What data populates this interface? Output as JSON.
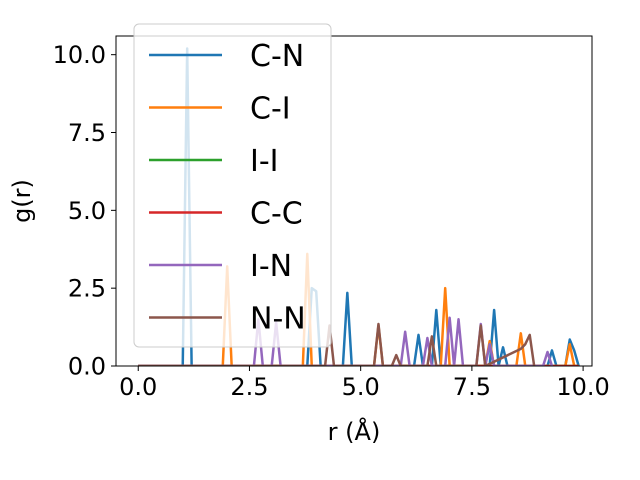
{
  "chart_data": {
    "type": "line",
    "title": "",
    "xlabel": "r (Å)",
    "ylabel": "g(r)",
    "xlim": [
      -0.5,
      10.2
    ],
    "ylim": [
      0.0,
      10.6
    ],
    "x_ticks": [
      0.0,
      2.5,
      5.0,
      7.5,
      10.0
    ],
    "x_tick_labels": [
      "0.0",
      "2.5",
      "5.0",
      "7.5",
      "10.0"
    ],
    "y_ticks": [
      0.0,
      2.5,
      5.0,
      7.5,
      10.0
    ],
    "y_tick_labels": [
      "0.0",
      "2.5",
      "5.0",
      "7.5",
      "10.0"
    ],
    "grid": false,
    "legend_position": "upper-left",
    "series": [
      {
        "name": "C-N",
        "color": "#1f77b4",
        "x": [
          0.0,
          1.0,
          1.1,
          1.2,
          3.8,
          3.9,
          4.0,
          4.1,
          4.6,
          4.7,
          4.8,
          6.2,
          6.3,
          6.4,
          6.6,
          6.7,
          6.8,
          7.9,
          8.0,
          8.1,
          8.2,
          8.3,
          8.4,
          9.2,
          9.3,
          9.4,
          9.6,
          9.7,
          9.8,
          9.9
        ],
        "y": [
          0.0,
          0.0,
          10.2,
          0.0,
          0.0,
          2.5,
          2.4,
          0.0,
          0.0,
          2.35,
          0.0,
          0.0,
          1.0,
          0.0,
          0.0,
          1.8,
          0.0,
          0.0,
          1.8,
          0.0,
          0.6,
          0.0,
          0.0,
          0.0,
          0.5,
          0.0,
          0.0,
          0.85,
          0.5,
          0.0
        ]
      },
      {
        "name": "C-I",
        "color": "#ff7f0e",
        "x": [
          0.0,
          1.9,
          2.0,
          2.1,
          3.7,
          3.8,
          3.9,
          5.3,
          5.4,
          5.5,
          6.8,
          6.9,
          7.0,
          7.8,
          7.9,
          8.0,
          8.5,
          8.6,
          8.7,
          9.6,
          9.7,
          9.8,
          9.9
        ],
        "y": [
          0.0,
          0.0,
          3.2,
          0.0,
          0.0,
          3.6,
          0.0,
          0.0,
          1.3,
          0.0,
          0.0,
          2.5,
          0.0,
          0.0,
          0.8,
          0.0,
          0.0,
          1.05,
          0.0,
          0.0,
          0.7,
          0.0,
          0.0
        ]
      },
      {
        "name": "I-I",
        "color": "#2ca02c",
        "x": [
          0.0,
          9.9
        ],
        "y": [
          0.0,
          0.0
        ]
      },
      {
        "name": "C-C",
        "color": "#d62728",
        "x": [
          0.0,
          9.9
        ],
        "y": [
          0.0,
          0.0
        ]
      },
      {
        "name": "I-N",
        "color": "#9467bd",
        "x": [
          0.0,
          2.6,
          2.7,
          2.8,
          3.0,
          3.1,
          3.2,
          5.9,
          6.0,
          6.1,
          6.4,
          6.5,
          6.6,
          6.9,
          7.0,
          7.1,
          7.2,
          7.3,
          7.6,
          7.7,
          7.8,
          7.9,
          8.0,
          9.1,
          9.2,
          9.3
        ],
        "y": [
          0.0,
          0.0,
          1.5,
          0.0,
          0.0,
          1.4,
          0.0,
          0.0,
          1.1,
          0.0,
          0.0,
          0.9,
          0.0,
          0.0,
          1.55,
          0.0,
          1.5,
          0.0,
          0.0,
          1.35,
          0.0,
          0.7,
          0.0,
          0.0,
          0.45,
          0.0
        ]
      },
      {
        "name": "N-N",
        "color": "#8c564b",
        "x": [
          0.0,
          4.2,
          4.3,
          4.4,
          5.3,
          5.4,
          5.5,
          5.7,
          5.8,
          5.9,
          6.5,
          6.6,
          6.7,
          7.6,
          7.7,
          7.8,
          8.6,
          8.7,
          8.8,
          8.9
        ],
        "y": [
          0.0,
          0.0,
          1.3,
          0.0,
          0.0,
          1.35,
          0.0,
          0.0,
          0.35,
          0.0,
          0.0,
          0.95,
          0.0,
          0.0,
          1.3,
          0.0,
          0.55,
          0.7,
          1.0,
          0.0
        ]
      }
    ]
  }
}
